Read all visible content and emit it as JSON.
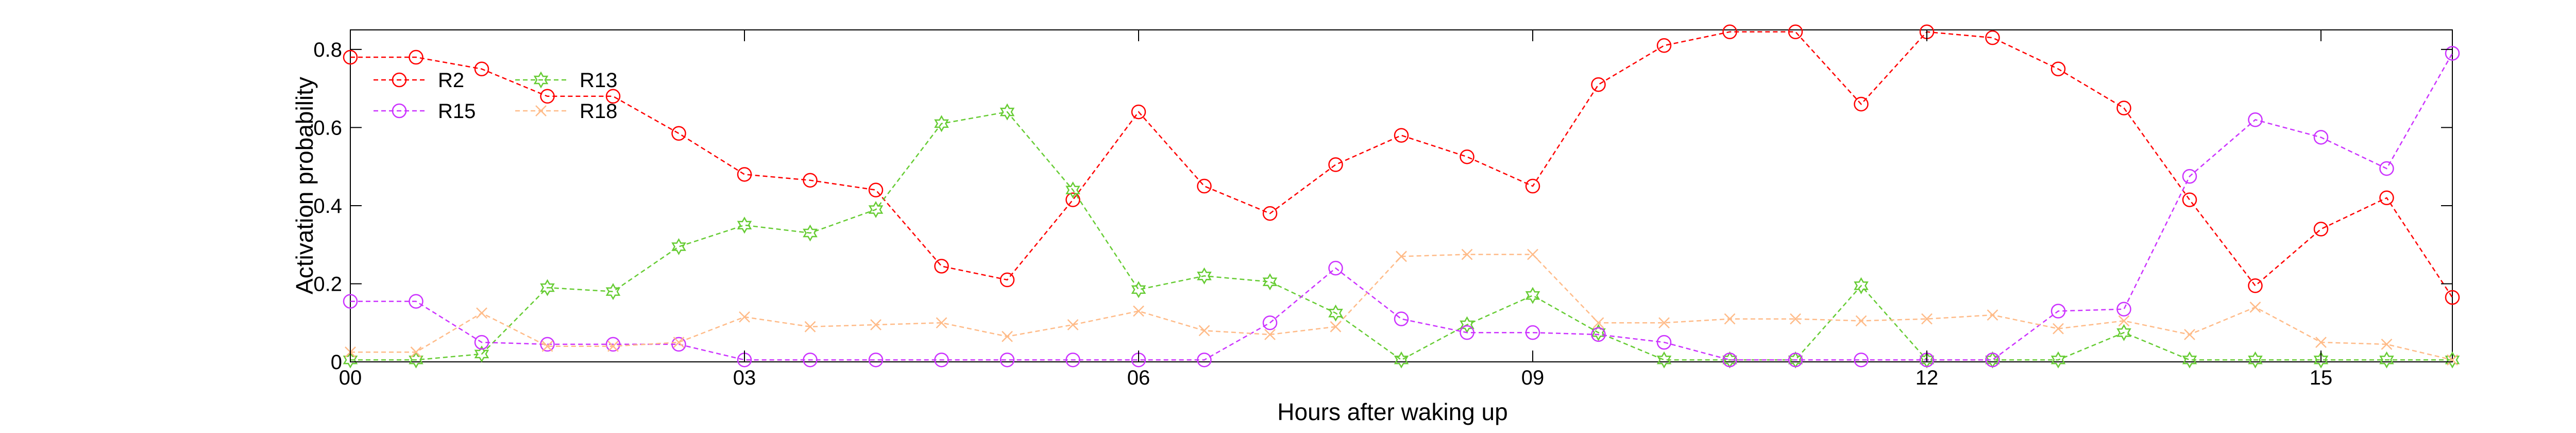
{
  "chart_data": {
    "type": "line",
    "xlabel": "Hours after waking up",
    "ylabel": "Activation probability",
    "xlim": [
      0,
      16
    ],
    "ylim": [
      0,
      0.85
    ],
    "xticks": [
      0,
      3,
      6,
      9,
      12,
      15
    ],
    "xtick_labels": [
      "00",
      "03",
      "06",
      "09",
      "12",
      "15"
    ],
    "yticks": [
      0,
      0.2,
      0.4,
      0.6,
      0.8
    ],
    "ytick_labels": [
      "0",
      "0.2",
      "0.4",
      "0.6",
      "0.8"
    ],
    "grid": false,
    "legend_position": "top-left",
    "x": [
      0,
      0.5,
      1,
      1.5,
      2,
      2.5,
      3,
      3.5,
      4,
      4.5,
      5,
      5.5,
      6,
      6.5,
      7,
      7.5,
      8,
      8.5,
      9,
      9.5,
      10,
      10.5,
      11,
      11.5,
      12,
      12.5,
      13,
      13.5,
      14,
      14.5,
      15,
      15.5,
      16
    ],
    "series": [
      {
        "name": "R2",
        "color": "#ff0000",
        "marker": "circle",
        "values": [
          0.78,
          0.78,
          0.75,
          0.68,
          0.68,
          0.585,
          0.48,
          0.465,
          0.44,
          0.245,
          0.21,
          0.415,
          0.64,
          0.45,
          0.38,
          0.505,
          0.58,
          0.525,
          0.45,
          0.71,
          0.81,
          0.845,
          0.845,
          0.66,
          0.845,
          0.83,
          0.75,
          0.65,
          0.415,
          0.195,
          0.34,
          0.42,
          0.165
        ]
      },
      {
        "name": "R13",
        "color": "#66cc33",
        "marker": "hexagram",
        "values": [
          0.005,
          0.005,
          0.02,
          0.19,
          0.18,
          0.295,
          0.35,
          0.33,
          0.39,
          0.61,
          0.64,
          0.44,
          0.185,
          0.22,
          0.205,
          0.125,
          0.005,
          0.095,
          0.17,
          0.075,
          0.005,
          0.005,
          0.005,
          0.195,
          0.005,
          0.005,
          0.005,
          0.075,
          0.005,
          0.005,
          0.005,
          0.005,
          0.005
        ]
      },
      {
        "name": "R15",
        "color": "#cc33ff",
        "marker": "circle",
        "values": [
          0.155,
          0.155,
          0.05,
          0.045,
          0.045,
          0.045,
          0.005,
          0.005,
          0.005,
          0.005,
          0.005,
          0.005,
          0.005,
          0.005,
          0.1,
          0.24,
          0.11,
          0.075,
          0.075,
          0.07,
          0.05,
          0.005,
          0.005,
          0.005,
          0.005,
          0.005,
          0.13,
          0.135,
          0.475,
          0.62,
          0.575,
          0.495,
          0.79
        ]
      },
      {
        "name": "R18",
        "color": "#ffbb88",
        "marker": "x",
        "values": [
          0.025,
          0.025,
          0.125,
          0.04,
          0.04,
          0.05,
          0.115,
          0.09,
          0.095,
          0.1,
          0.065,
          0.095,
          0.13,
          0.08,
          0.07,
          0.09,
          0.27,
          0.275,
          0.275,
          0.1,
          0.1,
          0.11,
          0.11,
          0.105,
          0.11,
          0.12,
          0.085,
          0.105,
          0.07,
          0.14,
          0.05,
          0.045,
          0.005
        ]
      }
    ]
  }
}
